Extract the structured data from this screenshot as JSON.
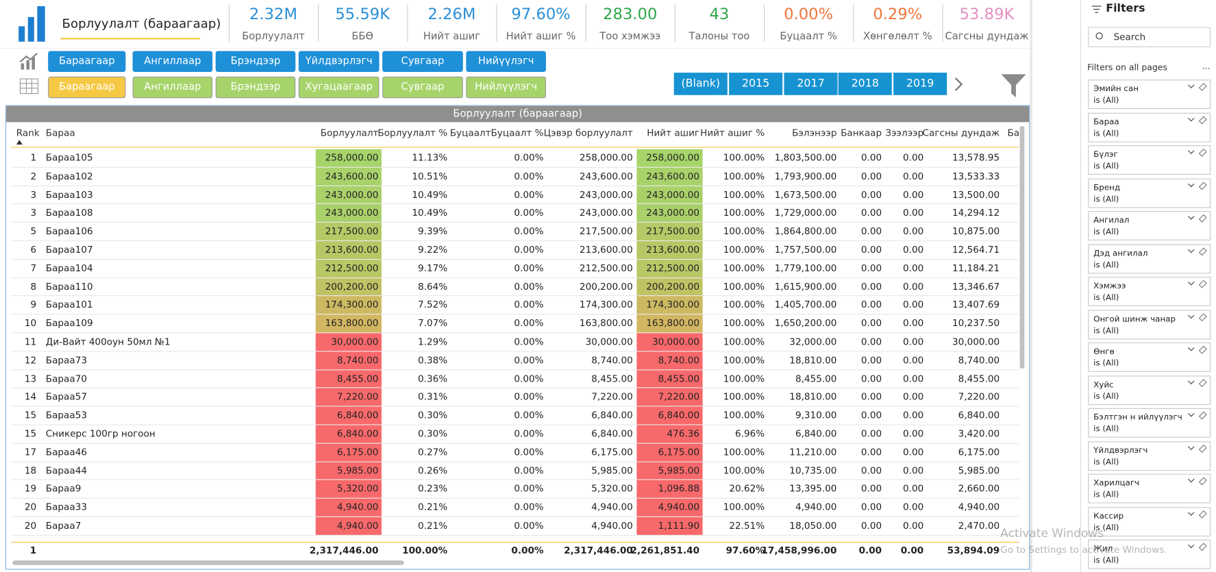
{
  "header": {
    "title": "Борлуулалт (бараагаар)"
  },
  "kpis": [
    {
      "value": "2.32M",
      "label": "Борлуулалт",
      "color": "#2a8fd6"
    },
    {
      "value": "55.59K",
      "label": "ББӨ",
      "color": "#2a8fd6"
    },
    {
      "value": "2.26M",
      "label": "Нийт ашиг",
      "color": "#2a8fd6"
    },
    {
      "value": "97.60%",
      "label": "Нийт ашиг %",
      "color": "#2a8fd6"
    },
    {
      "value": "283.00",
      "label": "Тоо хэмжээ",
      "color": "#2ea84a"
    },
    {
      "value": "43",
      "label": "Талоны тоо",
      "color": "#2ea84a"
    },
    {
      "value": "0.00%",
      "label": "Буцаалт %",
      "color": "#f0763c"
    },
    {
      "value": "0.29%",
      "label": "Хөнгөлөлт %",
      "color": "#f0763c"
    },
    {
      "value": "53.89K",
      "label": "Сагсны дундаж",
      "color": "#e28fc0"
    }
  ],
  "nav_row1": [
    "Бараагаар",
    "Ангиллаар",
    "Брэндээр",
    "Үйлдвэрлэгч",
    "Сувгаар",
    "Нийүүлэгч"
  ],
  "nav_row2": [
    "Бараагаар",
    "Ангиллаар",
    "Брэндээр",
    "Хугацаагаар",
    "Сувгаар",
    "Нийлүүлэгч"
  ],
  "years": [
    "(Blank)",
    "2015",
    "2017",
    "2018",
    "2019"
  ],
  "table": {
    "title": "Борлуулалт (бараагаар)",
    "columns": [
      "Rank",
      "Бараа",
      "Борлуулалт",
      "Борлуулалт %",
      "Буцаалт",
      "Буцаалт %",
      "Цэвэр борлуулалт",
      "Нийт ашиг",
      "Нийт ашиг %",
      "Бэлэнээр",
      "Банкаар",
      "Зээлээр",
      "Сагсны дундаж",
      "Ба"
    ],
    "rows": [
      [
        "1",
        "Бараа105",
        "258,000.00",
        "11.13%",
        null,
        "0.00%",
        "258,000.00",
        "258,000.00",
        "100.00%",
        "1,803,500.00",
        "0.00",
        "0.00",
        "13,578.95"
      ],
      [
        "2",
        "Бараа102",
        "243,600.00",
        "10.51%",
        null,
        "0.00%",
        "243,600.00",
        "243,600.00",
        "100.00%",
        "1,793,900.00",
        "0.00",
        "0.00",
        "13,533.33"
      ],
      [
        "3",
        "Бараа103",
        "243,000.00",
        "10.49%",
        null,
        "0.00%",
        "243,000.00",
        "243,000.00",
        "100.00%",
        "1,673,500.00",
        "0.00",
        "0.00",
        "13,500.00"
      ],
      [
        "3",
        "Бараа108",
        "243,000.00",
        "10.49%",
        null,
        "0.00%",
        "243,000.00",
        "243,000.00",
        "100.00%",
        "1,729,000.00",
        "0.00",
        "0.00",
        "14,294.12"
      ],
      [
        "5",
        "Бараа106",
        "217,500.00",
        "9.39%",
        null,
        "0.00%",
        "217,500.00",
        "217,500.00",
        "100.00%",
        "1,864,800.00",
        "0.00",
        "0.00",
        "10,875.00"
      ],
      [
        "6",
        "Бараа107",
        "213,600.00",
        "9.22%",
        null,
        "0.00%",
        "213,600.00",
        "213,600.00",
        "100.00%",
        "1,757,500.00",
        "0.00",
        "0.00",
        "12,564.71"
      ],
      [
        "7",
        "Бараа104",
        "212,500.00",
        "9.17%",
        null,
        "0.00%",
        "212,500.00",
        "212,500.00",
        "100.00%",
        "1,779,100.00",
        "0.00",
        "0.00",
        "11,184.21"
      ],
      [
        "8",
        "Бараа110",
        "200,200.00",
        "8.64%",
        null,
        "0.00%",
        "200,200.00",
        "200,200.00",
        "100.00%",
        "1,615,900.00",
        "0.00",
        "0.00",
        "13,346.67"
      ],
      [
        "9",
        "Бараа101",
        "174,300.00",
        "7.52%",
        null,
        "0.00%",
        "174,300.00",
        "174,300.00",
        "100.00%",
        "1,405,700.00",
        "0.00",
        "0.00",
        "13,407.69"
      ],
      [
        "10",
        "Бараа109",
        "163,800.00",
        "7.07%",
        null,
        "0.00%",
        "163,800.00",
        "163,800.00",
        "100.00%",
        "1,650,200.00",
        "0.00",
        "0.00",
        "10,237.50"
      ],
      [
        "11",
        "Ди-Вайт 400оун 50мл №1",
        "30,000.00",
        "1.29%",
        null,
        "0.00%",
        "30,000.00",
        "30,000.00",
        "100.00%",
        "32,000.00",
        "0.00",
        "0.00",
        "30,000.00"
      ],
      [
        "12",
        "Бараа73",
        "8,740.00",
        "0.38%",
        null,
        "0.00%",
        "8,740.00",
        "8,740.00",
        "100.00%",
        "18,810.00",
        "0.00",
        "0.00",
        "8,740.00"
      ],
      [
        "13",
        "Бараа70",
        "8,455.00",
        "0.36%",
        null,
        "0.00%",
        "8,455.00",
        "8,455.00",
        "100.00%",
        "8,455.00",
        "0.00",
        "0.00",
        "8,455.00"
      ],
      [
        "14",
        "Бараа57",
        "7,220.00",
        "0.31%",
        null,
        "0.00%",
        "7,220.00",
        "7,220.00",
        "100.00%",
        "18,810.00",
        "0.00",
        "0.00",
        "7,220.00"
      ],
      [
        "15",
        "Бараа53",
        "6,840.00",
        "0.30%",
        null,
        "0.00%",
        "6,840.00",
        "6,840.00",
        "100.00%",
        "9,310.00",
        "0.00",
        "0.00",
        "6,840.00"
      ],
      [
        "15",
        "Сникерс 100гр ногоон",
        "6,840.00",
        "0.30%",
        null,
        "0.00%",
        "6,840.00",
        "476.36",
        "6.96%",
        "6,840.00",
        "0.00",
        "0.00",
        "3,420.00"
      ],
      [
        "17",
        "Бараа46",
        "6,175.00",
        "0.27%",
        null,
        "0.00%",
        "6,175.00",
        "6,175.00",
        "100.00%",
        "11,210.00",
        "0.00",
        "0.00",
        "6,175.00"
      ],
      [
        "18",
        "Бараа44",
        "5,985.00",
        "0.26%",
        null,
        "0.00%",
        "5,985.00",
        "5,985.00",
        "100.00%",
        "10,735.00",
        "0.00",
        "0.00",
        "5,985.00"
      ],
      [
        "19",
        "Бараа9",
        "5,320.00",
        "0.23%",
        null,
        "0.00%",
        "5,320.00",
        "1,096.88",
        "20.62%",
        "13,395.00",
        "0.00",
        "0.00",
        "2,660.00"
      ],
      [
        "20",
        "Бараа33",
        "4,940.00",
        "0.21%",
        null,
        "0.00%",
        "4,940.00",
        "4,940.00",
        "100.00%",
        "4,940.00",
        "0.00",
        "0.00",
        "4,940.00"
      ],
      [
        "20",
        "Бараа7",
        "4,940.00",
        "0.21%",
        null,
        "0.00%",
        "4,940.00",
        "1,111.90",
        "22.51%",
        "18,050.00",
        "0.00",
        "0.00",
        "2,470.00"
      ]
    ],
    "highlight": [
      "#a6d46a",
      "#a9d26a",
      "#aad06a",
      "#aad06a",
      "#b5c966",
      "#b8c766",
      "#b9c766",
      "#c1c264",
      "#cdb962",
      "#d2b661",
      "#f8696b",
      "#f8696b",
      "#f8696b",
      "#f8696b",
      "#f8696b",
      "#f8696b",
      "#f8696b",
      "#f8696b",
      "#f8696b",
      "#f8696b",
      "#f8696b"
    ],
    "profit_highlight": [
      "#a6d46a",
      "#a9d26a",
      "#aad06a",
      "#aad06a",
      "#b5c966",
      "#b8c766",
      "#b9c766",
      "#c1c264",
      "#cdb962",
      "#d2b661",
      "#f8696b",
      "#f8696b",
      "#f8696b",
      "#f8696b",
      "#f8696b",
      "#f8696b",
      "#f8696b",
      "#f8696b",
      "#f8696b",
      "#f8696b",
      "#f8696b"
    ],
    "total": [
      "1",
      null,
      "2,317,446.00",
      "100.00%",
      null,
      "0.00%",
      "2,317,446.00",
      "2,261,851.40",
      "97.60%",
      "17,458,996.00",
      "0.00",
      "0.00",
      "53,894.09"
    ]
  },
  "filters": {
    "title": "Filters",
    "search": "Search",
    "section": "Filters on all pages",
    "more": "...",
    "items": [
      {
        "name": "Эмийн сан",
        "state": "is (All)"
      },
      {
        "name": "Бараа",
        "state": "is (All)"
      },
      {
        "name": "Бүлэг",
        "state": "is (All)"
      },
      {
        "name": "Бренд",
        "state": "is (All)"
      },
      {
        "name": "Ангилал",
        "state": "is (All)"
      },
      {
        "name": "Дэд ангилал",
        "state": "is (All)"
      },
      {
        "name": "Хэмжээ",
        "state": "is (All)"
      },
      {
        "name": "Онгой шинж чанар",
        "state": "is (All)"
      },
      {
        "name": "Өнгө",
        "state": "is (All)"
      },
      {
        "name": "Хуйс",
        "state": "is (All)"
      },
      {
        "name": "Бэлтгэн н ийлүүлэгч",
        "state": "is (All)"
      },
      {
        "name": "Үйлдвэрлэгч",
        "state": "is (All)"
      },
      {
        "name": "Харилцагч",
        "state": "is (All)"
      },
      {
        "name": "Кассир",
        "state": "is (All)"
      },
      {
        "name": "Жил",
        "state": "is (All)"
      }
    ]
  },
  "watermark": {
    "line1": "Activate Windows",
    "line2": "Go to Settings to activate Windows."
  }
}
